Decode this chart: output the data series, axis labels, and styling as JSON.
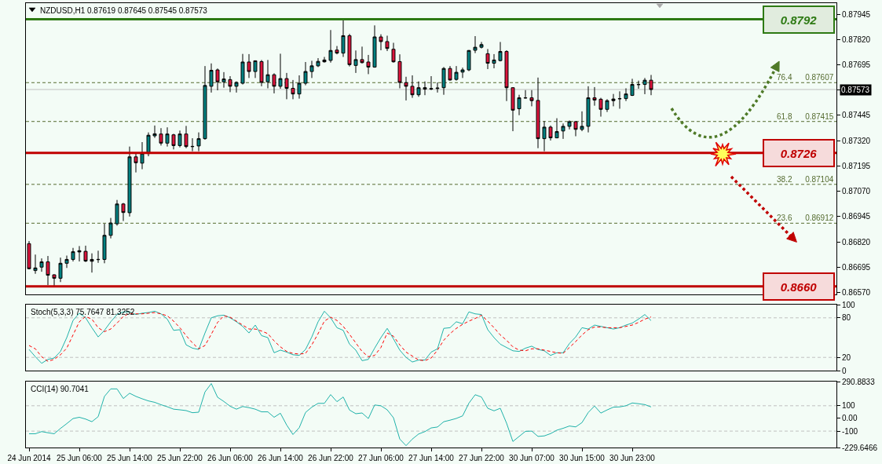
{
  "chart_data": [
    {
      "type": "candlestick",
      "title": "NZDUSD,H1 0.87619 0.87645 0.87545 0.87573",
      "categories": [
        null,
        null,
        null,
        null,
        null,
        null,
        null,
        null,
        null,
        null,
        null,
        null,
        null,
        null,
        null,
        null,
        null,
        null,
        null,
        null,
        null,
        null,
        null,
        null,
        null,
        null,
        null,
        null,
        null,
        null,
        null,
        null,
        null,
        null,
        null,
        null,
        null,
        null,
        null,
        null,
        null,
        null,
        null,
        null,
        null,
        null,
        null,
        null,
        null,
        null,
        null,
        null,
        null,
        null,
        null,
        null,
        null,
        null,
        null,
        null,
        null,
        null,
        null,
        null,
        null,
        null,
        null,
        null,
        null,
        null,
        null,
        null,
        null,
        null,
        null,
        null,
        null,
        null,
        null,
        null,
        null,
        null,
        null,
        null,
        null,
        null,
        null,
        null,
        null,
        null,
        null,
        null,
        null,
        null,
        null,
        null,
        null,
        null,
        null,
        null,
        null,
        null,
        null,
        null,
        null,
        null,
        null,
        null,
        null,
        null,
        null,
        null,
        null,
        null,
        null,
        null,
        null,
        null,
        null,
        null,
        null,
        null,
        null,
        null,
        null,
        null,
        null,
        null,
        null
      ],
      "ohlc": [
        [
          0.86811,
          0.86824,
          0.86684,
          0.86687
        ],
        [
          0.86678,
          0.86757,
          0.86662,
          0.86691
        ],
        [
          0.86695,
          0.86738,
          0.86672,
          0.86721
        ],
        [
          0.86721,
          0.8675,
          0.86606,
          0.86655
        ],
        [
          0.86657,
          0.86659,
          0.866,
          0.8664
        ],
        [
          0.8664,
          0.86742,
          0.86621,
          0.86714
        ],
        [
          0.86714,
          0.86752,
          0.86691,
          0.86733
        ],
        [
          0.86733,
          0.8679,
          0.86723,
          0.86771
        ],
        [
          0.8677,
          0.86799,
          0.86723,
          0.86776
        ],
        [
          0.86773,
          0.86801,
          0.8672,
          0.86725
        ],
        [
          0.86724,
          0.86763,
          0.86668,
          0.86733
        ],
        [
          0.86732,
          0.86776,
          0.86716,
          0.86733
        ],
        [
          0.86733,
          0.8691,
          0.86714,
          0.86852
        ],
        [
          0.86852,
          0.86938,
          0.86837,
          0.86913
        ],
        [
          0.86909,
          0.87027,
          0.869,
          0.87007
        ],
        [
          0.87007,
          0.87012,
          0.86923,
          0.86965
        ],
        [
          0.86964,
          0.87291,
          0.86945,
          0.8724
        ],
        [
          0.8724,
          0.87256,
          0.87163,
          0.87211
        ],
        [
          0.87209,
          0.87313,
          0.87179,
          0.87258
        ],
        [
          0.87256,
          0.87361,
          0.87243,
          0.87347
        ],
        [
          0.87344,
          0.87395,
          0.87334,
          0.87354
        ],
        [
          0.87353,
          0.87382,
          0.87296,
          0.87308
        ],
        [
          0.87308,
          0.87386,
          0.87291,
          0.87353
        ],
        [
          0.87349,
          0.87354,
          0.87277,
          0.87296
        ],
        [
          0.87296,
          0.8737,
          0.87287,
          0.87353
        ],
        [
          0.87353,
          0.87393,
          0.87283,
          0.87291
        ],
        [
          0.87292,
          0.87332,
          0.87268,
          0.87291
        ],
        [
          0.87294,
          0.87361,
          0.87268,
          0.8733
        ],
        [
          0.8733,
          0.87689,
          0.87325,
          0.87593
        ],
        [
          0.87589,
          0.87702,
          0.87558,
          0.87668
        ],
        [
          0.8767,
          0.87677,
          0.87569,
          0.87611
        ],
        [
          0.87611,
          0.87659,
          0.87582,
          0.87625
        ],
        [
          0.87622,
          0.87639,
          0.8756,
          0.87589
        ],
        [
          0.87589,
          0.87613,
          0.87558,
          0.87608
        ],
        [
          0.87604,
          0.87749,
          0.87598,
          0.87709
        ],
        [
          0.87709,
          0.87748,
          0.8763,
          0.87662
        ],
        [
          0.87662,
          0.87717,
          0.8763,
          0.87715
        ],
        [
          0.87711,
          0.87719,
          0.87589,
          0.87608
        ],
        [
          0.87611,
          0.87719,
          0.87579,
          0.87646
        ],
        [
          0.87646,
          0.87653,
          0.87554,
          0.87589
        ],
        [
          0.87589,
          0.8775,
          0.87577,
          0.87627
        ],
        [
          0.87627,
          0.87655,
          0.87525,
          0.87579
        ],
        [
          0.87579,
          0.8762,
          0.87525,
          0.87551
        ],
        [
          0.87551,
          0.87643,
          0.87528,
          0.87604
        ],
        [
          0.87604,
          0.87709,
          0.87594,
          0.87662
        ],
        [
          0.87662,
          0.87715,
          0.8763,
          0.8769
        ],
        [
          0.8769,
          0.87728,
          0.87684,
          0.87712
        ],
        [
          0.8771,
          0.87734,
          0.87706,
          0.87719
        ],
        [
          0.87717,
          0.87867,
          0.87706,
          0.87766
        ],
        [
          0.87768,
          0.87788,
          0.87747,
          0.87753
        ],
        [
          0.87753,
          0.8792,
          0.87734,
          0.87839
        ],
        [
          0.87839,
          0.87848,
          0.87687,
          0.87696
        ],
        [
          0.87692,
          0.87766,
          0.87655,
          0.87721
        ],
        [
          0.87721,
          0.87785,
          0.87702,
          0.87706
        ],
        [
          0.87709,
          0.87744,
          0.87649,
          0.87684
        ],
        [
          0.87684,
          0.8789,
          0.87681,
          0.87833
        ],
        [
          0.87833,
          0.87846,
          0.87767,
          0.8781
        ],
        [
          0.8781,
          0.87839,
          0.87763,
          0.87776
        ],
        [
          0.87772,
          0.87804,
          0.87706,
          0.8771
        ],
        [
          0.87711,
          0.87747,
          0.87579,
          0.87608
        ],
        [
          0.87607,
          0.87636,
          0.87519,
          0.87589
        ],
        [
          0.87589,
          0.87643,
          0.87532,
          0.87547
        ],
        [
          0.87547,
          0.87613,
          0.87537,
          0.87582
        ],
        [
          0.87582,
          0.87613,
          0.87545,
          0.87575
        ],
        [
          0.87578,
          0.87639,
          0.8757,
          0.87575
        ],
        [
          0.87578,
          0.87608,
          0.87558,
          0.8758
        ],
        [
          0.87582,
          0.87684,
          0.87547,
          0.87677
        ],
        [
          0.87677,
          0.87689,
          0.87617,
          0.8762
        ],
        [
          0.87623,
          0.87689,
          0.87617,
          0.87658
        ],
        [
          0.87659,
          0.87681,
          0.8763,
          0.8767
        ],
        [
          0.8767,
          0.87768,
          0.87664,
          0.87766
        ],
        [
          0.87767,
          0.87837,
          0.87753,
          0.87782
        ],
        [
          0.87782,
          0.87808,
          0.87776,
          0.87795
        ],
        [
          0.8775,
          0.87773,
          0.87674,
          0.87703
        ],
        [
          0.87703,
          0.87748,
          0.87678,
          0.87719
        ],
        [
          0.87716,
          0.87808,
          0.87712,
          0.87761
        ],
        [
          0.87761,
          0.87767,
          0.87516,
          0.87582
        ],
        [
          0.87582,
          0.87583,
          0.87367,
          0.87471
        ],
        [
          0.87478,
          0.87547,
          0.87446,
          0.87532
        ],
        [
          0.87531,
          0.8757,
          0.87528,
          0.87532
        ],
        [
          0.87532,
          0.8757,
          0.8749,
          0.87518
        ],
        [
          0.87519,
          0.87632,
          0.87283,
          0.8733
        ],
        [
          0.8733,
          0.87417,
          0.87268,
          0.87387
        ],
        [
          0.87387,
          0.87395,
          0.87321,
          0.87334
        ],
        [
          0.87334,
          0.87431,
          0.87332,
          0.87365
        ],
        [
          0.87368,
          0.87405,
          0.87329,
          0.87391
        ],
        [
          0.87391,
          0.8742,
          0.87376,
          0.87414
        ],
        [
          0.87414,
          0.87417,
          0.87342,
          0.87376
        ],
        [
          0.87376,
          0.87465,
          0.87367,
          0.87391
        ],
        [
          0.87391,
          0.87589,
          0.87361,
          0.87532
        ],
        [
          0.87532,
          0.87585,
          0.87493,
          0.87521
        ],
        [
          0.87525,
          0.87532,
          0.87439,
          0.87475
        ],
        [
          0.87475,
          0.87525,
          0.87462,
          0.87518
        ],
        [
          0.87518,
          0.87551,
          0.8749,
          0.87526
        ],
        [
          0.87527,
          0.87564,
          0.87478,
          0.87528
        ],
        [
          0.87528,
          0.87579,
          0.87516,
          0.87551
        ],
        [
          0.87544,
          0.87626,
          0.87541,
          0.87598
        ],
        [
          0.87597,
          0.87617,
          0.87577,
          0.87598
        ],
        [
          0.87598,
          0.8763,
          0.8755,
          0.87619
        ],
        [
          0.87619,
          0.87645,
          0.87545,
          0.87573
        ],
        null,
        null,
        null,
        null,
        null,
        null,
        null,
        null,
        null,
        null,
        null,
        null,
        null,
        null,
        null,
        null,
        null,
        null,
        null,
        null,
        null,
        null,
        null,
        null,
        null,
        null,
        null,
        null,
        null
      ],
      "colors": [
        "#dc143c",
        "#008080",
        "#008080",
        "#dc143c",
        "#dc143c",
        "#008080",
        "#008080",
        "#008080",
        "#000000",
        "#dc143c",
        "#000000",
        "#000000",
        "#008080",
        "#008080",
        "#008080",
        "#dc143c",
        "#008080",
        "#dc143c",
        "#008080",
        "#008080",
        "#008080",
        "#dc143c",
        "#008080",
        "#dc143c",
        "#008080",
        "#dc143c",
        "#000000",
        "#008080",
        "#008080",
        "#008080",
        "#dc143c",
        "#008080",
        "#dc143c",
        "#008080",
        "#008080",
        "#dc143c",
        "#008080",
        "#dc143c",
        "#008080",
        "#dc143c",
        "#008080",
        "#dc143c",
        "#dc143c",
        "#008080",
        "#008080",
        "#008080",
        "#008080",
        "#000000",
        "#008080",
        "#dc143c",
        "#008080",
        "#dc143c",
        "#008080",
        "#dc143c",
        "#dc143c",
        "#008080",
        "#dc143c",
        "#dc143c",
        "#dc143c",
        "#dc143c",
        "#dc143c",
        "#dc143c",
        "#008080",
        "#000000",
        "#000000",
        "#000000",
        "#008080",
        "#dc143c",
        "#008080",
        "#008080",
        "#008080",
        "#008080",
        "#008080",
        "#dc143c",
        "#008080",
        "#008080",
        "#dc143c",
        "#dc143c",
        "#008080",
        "#000000",
        "#dc143c",
        "#dc143c",
        "#008080",
        "#dc143c",
        "#008080",
        "#008080",
        "#008080",
        "#dc143c",
        "#008080",
        "#008080",
        "#dc143c",
        "#dc143c",
        "#008080",
        "#000000",
        "#000000",
        "#008080",
        "#008080",
        "#000000",
        "#008080",
        "#dc143c",
        null,
        null,
        null,
        null,
        null,
        null,
        null,
        null,
        null,
        null,
        null,
        null,
        null,
        null,
        null,
        null,
        null,
        null,
        null,
        null,
        null,
        null,
        null,
        null,
        null,
        null,
        null,
        null,
        null
      ],
      "ylim": [
        0.8656,
        0.88
      ],
      "yticks": [
        0.87945,
        {
          "value": 0.8782,
          "label": "0.87820"
        },
        0.87695,
        0.87573,
        0.87445,
        {
          "value": 0.8732,
          "label": "0.87320"
        },
        0.87195,
        {
          "value": 0.8707,
          "label": "0.87070"
        },
        0.86945,
        {
          "value": 0.8682,
          "label": "0.86820"
        },
        0.86695,
        {
          "value": 0.8657,
          "label": "0.86570"
        }
      ],
      "ref_lines": [
        {
          "axis": "y",
          "value": 0.87573,
          "color": "#c0c0c0",
          "line_style": "solid"
        },
        {
          "axis": "y",
          "value": 0.87607,
          "label": "76.4 0.87607",
          "color": "#556b2f",
          "line_style": "dashed"
        },
        {
          "axis": "y",
          "value": 0.87415,
          "label": "61.8 0.87415",
          "color": "#556b2f",
          "line_style": "dashed"
        },
        {
          "axis": "y",
          "value": 0.87104,
          "label": "38.2 0.87104",
          "color": "#556b2f",
          "line_style": "dashed"
        },
        {
          "axis": "y",
          "value": 0.86912,
          "label": "23.6 0.86912",
          "color": "#556b2f",
          "line_style": "dashed"
        },
        {
          "axis": "y",
          "value": 0.8792,
          "label": "0.8792",
          "color": "#2e7a14",
          "line_style": "solid"
        },
        {
          "axis": "y",
          "value": 0.8726,
          "label": "0.8726",
          "color": "#c00000",
          "line_style": "solid"
        },
        {
          "axis": "y",
          "value": 0.866,
          "label": "0.8660",
          "color": "#c00000",
          "line_style": "solid"
        }
      ]
    },
    {
      "type": "line",
      "title": "Stoch(5,3,3) 75.7647 81.3252",
      "categories": [
        null,
        null,
        null,
        null,
        null,
        null,
        null,
        null,
        null,
        null,
        null,
        null,
        null,
        null,
        null,
        null,
        null,
        null,
        null,
        null,
        null,
        null,
        null,
        null,
        null,
        null,
        null,
        null,
        null,
        null,
        null,
        null,
        null,
        null,
        null,
        null,
        null,
        null,
        null,
        null,
        null,
        null,
        null,
        null,
        null,
        null,
        null,
        null,
        null,
        null,
        null,
        null,
        null,
        null,
        null,
        null,
        null,
        null,
        null,
        null,
        null,
        null,
        null,
        null,
        null,
        null,
        null,
        null,
        null,
        null,
        null,
        null,
        null,
        null,
        null,
        null,
        null,
        null,
        null,
        null,
        null,
        null,
        null,
        null,
        null,
        null,
        null,
        null,
        null,
        null,
        null,
        null,
        null,
        null,
        null,
        null,
        null,
        null,
        null,
        null,
        null,
        null,
        null,
        null,
        null,
        null,
        null,
        null,
        null,
        null,
        null,
        null,
        null,
        null,
        null,
        null,
        null,
        null,
        null,
        null,
        null,
        null,
        null,
        null,
        null,
        null,
        null,
        null,
        null
      ],
      "series": [
        {
          "color": "#20b2aa",
          "line_style": "solid",
          "values": [
            32,
            21,
            11,
            17,
            19,
            29,
            50,
            76,
            87,
            80,
            65,
            51,
            61,
            74,
            85,
            89,
            89,
            85,
            87,
            88,
            90,
            86,
            78,
            61,
            62,
            39,
            34,
            32,
            57,
            80,
            83,
            84,
            80,
            74,
            67,
            57,
            69,
            53,
            50,
            27,
            31,
            28,
            24,
            23,
            32,
            51,
            74,
            90,
            80,
            65,
            61,
            40,
            31,
            15,
            17,
            34,
            50,
            64,
            48,
            31,
            20,
            13,
            16,
            16,
            28,
            33,
            64,
            65,
            74,
            71,
            89,
            86,
            85,
            62,
            50,
            40,
            35,
            30,
            29,
            34,
            37,
            32,
            30,
            23,
            27,
            27,
            41,
            51,
            65,
            63,
            69,
            67,
            65,
            63,
            65,
            69,
            72,
            78,
            85,
            75.7647,
            null,
            null,
            null,
            null,
            null,
            null,
            null,
            null,
            null,
            null,
            null,
            null,
            null,
            null,
            null,
            null,
            null,
            null,
            null,
            null,
            null,
            null,
            null,
            null,
            null,
            null,
            null,
            null,
            null
          ]
        },
        {
          "color": "#ff0000",
          "line_style": "dashed",
          "values": [
            38,
            33,
            21,
            14,
            17,
            24,
            34,
            54,
            74,
            82,
            78,
            65,
            59,
            63,
            72,
            82,
            87,
            86,
            86,
            87,
            88,
            86,
            83,
            75,
            65,
            53,
            42,
            33,
            38,
            55,
            73,
            83,
            81,
            75,
            69,
            63,
            63,
            60,
            56,
            45,
            36,
            29,
            26,
            25,
            26,
            39,
            56,
            75,
            81,
            76,
            67,
            55,
            42,
            29,
            21,
            23,
            35,
            57,
            52,
            39,
            28,
            22,
            16,
            15,
            19,
            31,
            46,
            56,
            64,
            70,
            75,
            79,
            84,
            75,
            65,
            54,
            46,
            36,
            31,
            30,
            33,
            33,
            31,
            29,
            27,
            26,
            35,
            44,
            54,
            62,
            66,
            66,
            65,
            65,
            65,
            67,
            69,
            73,
            78,
            81.3252,
            null,
            null,
            null,
            null,
            null,
            null,
            null,
            null,
            null,
            null,
            null,
            null,
            null,
            null,
            null,
            null,
            null,
            null,
            null,
            null,
            null,
            null,
            null,
            null,
            null,
            null,
            null,
            null,
            null
          ]
        }
      ],
      "ylim": [
        0,
        100
      ],
      "yticks": [
        0,
        20,
        80,
        100
      ],
      "ref_lines": [
        {
          "axis": "y",
          "value": 80,
          "color": "#c0c0c0",
          "line_style": "dashed"
        },
        {
          "axis": "y",
          "value": 20,
          "color": "#c0c0c0",
          "line_style": "dashed"
        }
      ]
    },
    {
      "type": "line",
      "title": "CCI(14) 90.7041",
      "categories": [
        "24 Jun 2014",
        null,
        null,
        null,
        null,
        null,
        null,
        null,
        "25 Jun 06:00",
        null,
        null,
        null,
        null,
        null,
        null,
        null,
        "25 Jun 14:00",
        null,
        null,
        null,
        null,
        null,
        null,
        null,
        "25 Jun 22:00",
        null,
        null,
        null,
        null,
        null,
        null,
        null,
        "26 Jun 06:00",
        null,
        null,
        null,
        null,
        null,
        null,
        null,
        "26 Jun 14:00",
        null,
        null,
        null,
        null,
        null,
        null,
        null,
        "26 Jun 22:00",
        null,
        null,
        null,
        null,
        null,
        null,
        null,
        "27 Jun 06:00",
        null,
        null,
        null,
        null,
        null,
        null,
        null,
        "27 Jun 14:00",
        null,
        null,
        null,
        null,
        null,
        null,
        null,
        "27 Jun 22:00",
        null,
        null,
        null,
        null,
        null,
        null,
        null,
        "30 Jun 07:00",
        null,
        null,
        null,
        null,
        null,
        null,
        null,
        "30 Jun 15:00",
        null,
        null,
        null,
        null,
        null,
        null,
        null,
        "30 Jun 23:00",
        null,
        null,
        null,
        null,
        null,
        null,
        null,
        null,
        null,
        null,
        null,
        null,
        null,
        null,
        null,
        null,
        null,
        null,
        null,
        null,
        null,
        null,
        null,
        null,
        null,
        null,
        null,
        null,
        null,
        null,
        null,
        null
      ],
      "color": "#20b2aa",
      "values": [
        -121,
        -121,
        -104,
        -113,
        -121,
        -79,
        -41,
        -1,
        9,
        -5,
        -26,
        14,
        174,
        233,
        233,
        157,
        199,
        174,
        155,
        138,
        127,
        108,
        92,
        73,
        68,
        62,
        45,
        49,
        209,
        275,
        167,
        134,
        96,
        73,
        94,
        85,
        73,
        52,
        52,
        9,
        41,
        -52,
        -127,
        -73,
        47,
        89,
        119,
        119,
        188,
        132,
        169,
        66,
        37,
        43,
        -1,
        106,
        100,
        68,
        5,
        -163,
        -215,
        -163,
        -123,
        -104,
        -75,
        -68,
        -26,
        -14,
        0,
        20,
        120,
        187,
        169,
        80,
        60,
        80,
        -38,
        -182,
        -142,
        -102,
        -100,
        -142,
        -138,
        -120,
        -93,
        -78,
        -60,
        -67,
        -33,
        47,
        98,
        42,
        67,
        89,
        91,
        100,
        122,
        116,
        109,
        90.7041,
        null,
        null,
        null,
        null,
        null,
        null,
        null,
        null,
        null,
        null,
        null,
        null,
        null,
        null,
        null,
        null,
        null,
        null,
        null,
        null,
        null,
        null,
        null,
        null,
        null,
        null,
        null,
        null,
        null
      ],
      "ylim": [
        -229.6466,
        290.8833
      ],
      "yticks": [
        290.8833,
        100,
        {
          "value": 0,
          "label": "0.00"
        },
        -100,
        -229.6466
      ],
      "ref_lines": [
        {
          "axis": "y",
          "value": 100,
          "color": "#c0c0c0",
          "line_style": "dashed"
        },
        {
          "axis": "y",
          "value": -100,
          "color": "#c0c0c0",
          "line_style": "dashed"
        }
      ]
    }
  ]
}
